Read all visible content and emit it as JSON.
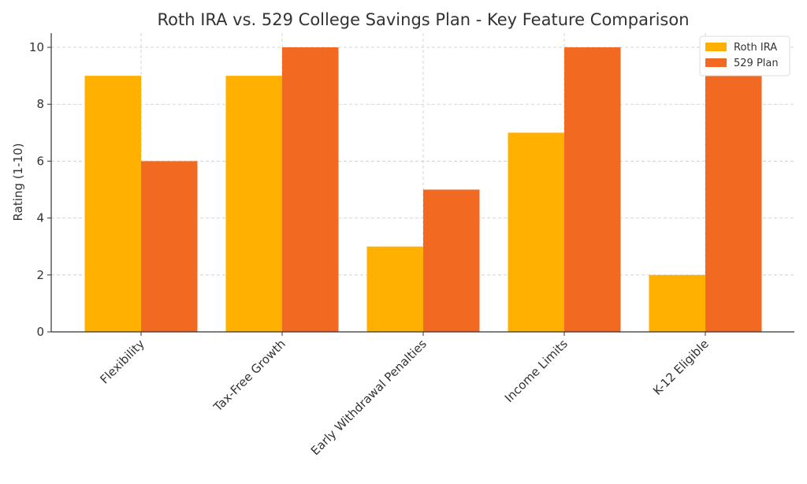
{
  "chart_data": {
    "type": "bar",
    "title": "Roth IRA vs. 529 College Savings Plan - Key Feature Comparison",
    "xlabel": "",
    "ylabel": "Rating (1-10)",
    "ylim": [
      0,
      10.5
    ],
    "yticks": [
      0,
      2,
      4,
      6,
      8,
      10
    ],
    "grid": true,
    "legend_position": "top-right",
    "categories": [
      "Flexibility",
      "Tax-Free Growth",
      "Early Withdrawal Penalties",
      "Income Limits",
      "K-12 Eligible"
    ],
    "series": [
      {
        "name": "Roth IRA",
        "color": "#FFB000",
        "values": [
          9,
          9,
          3,
          7,
          2
        ]
      },
      {
        "name": "529 Plan",
        "color": "#F26A21",
        "values": [
          6,
          10,
          5,
          10,
          9
        ]
      }
    ]
  }
}
